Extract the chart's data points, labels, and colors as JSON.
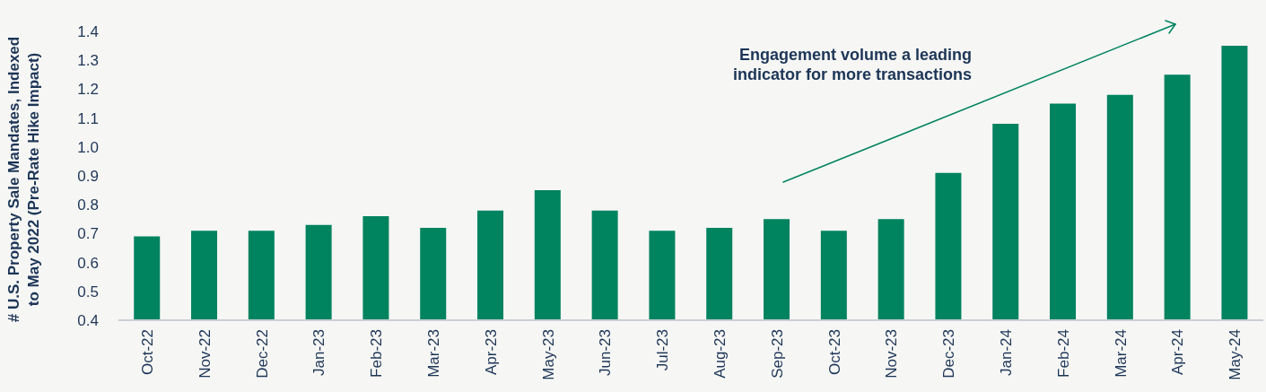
{
  "chart_data": {
    "type": "bar",
    "ylabel": "# U.S. Property Sale Mandates, Indexed to May 2022 (Pre-Rate Hike Impact)",
    "categories": [
      "Oct-22",
      "Nov-22",
      "Dec-22",
      "Jan-23",
      "Feb-23",
      "Mar-23",
      "Apr-23",
      "May-23",
      "Jun-23",
      "Jul-23",
      "Aug-23",
      "Sep-23",
      "Oct-23",
      "Nov-23",
      "Dec-23",
      "Jan-24",
      "Feb-24",
      "Mar-24",
      "Apr-24",
      "May-24"
    ],
    "values": [
      0.69,
      0.71,
      0.71,
      0.73,
      0.76,
      0.72,
      0.78,
      0.85,
      0.78,
      0.71,
      0.72,
      0.75,
      0.71,
      0.75,
      0.91,
      1.08,
      1.15,
      1.18,
      1.25,
      1.35
    ],
    "color": "#00835f",
    "ylim": [
      0.4,
      1.4
    ],
    "yticks": [
      0.4,
      0.5,
      0.6,
      0.7,
      0.8,
      0.9,
      {
        "value": 1.0,
        "label": "1.0"
      },
      1.1,
      1.2,
      1.3,
      1.4
    ],
    "annotations": [
      "Engagement volume a leading indicator for more transactions"
    ]
  }
}
